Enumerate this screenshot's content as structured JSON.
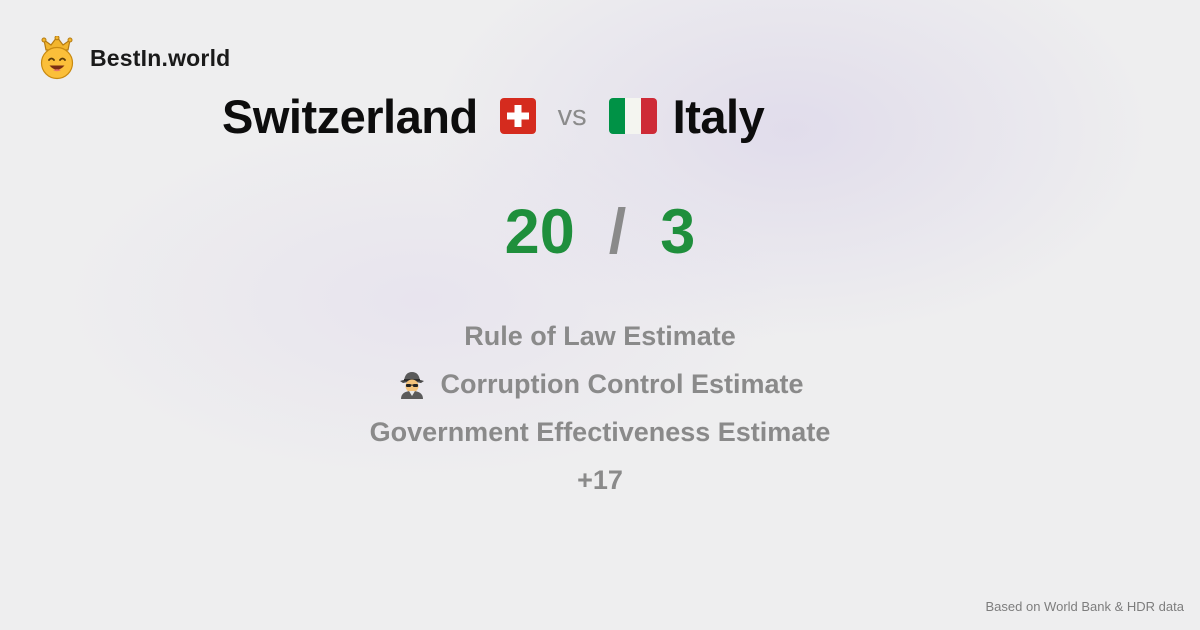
{
  "brand": {
    "name": "BestIn.world",
    "logo_icon": "crowned-smiley-icon"
  },
  "comparison": {
    "country_a": "Switzerland",
    "flag_a": "switzerland-flag-icon",
    "vs_label": "vs",
    "country_b": "Italy",
    "flag_b": "italy-flag-icon"
  },
  "score": {
    "a": "20",
    "separator": "/",
    "b": "3"
  },
  "metrics": [
    {
      "label": "Rule of Law Estimate"
    },
    {
      "label": "Corruption Control Estimate",
      "icon": "detective-emoji-icon"
    },
    {
      "label": "Government Effectiveness Estimate"
    }
  ],
  "more_label": "+17",
  "footer": "Based on World Bank & HDR data",
  "colors": {
    "score": "#1f8f3c",
    "muted": "#8a8a8a",
    "swiss_red": "#d52b1e",
    "italy_green": "#009246",
    "italy_red": "#ce2b37"
  }
}
